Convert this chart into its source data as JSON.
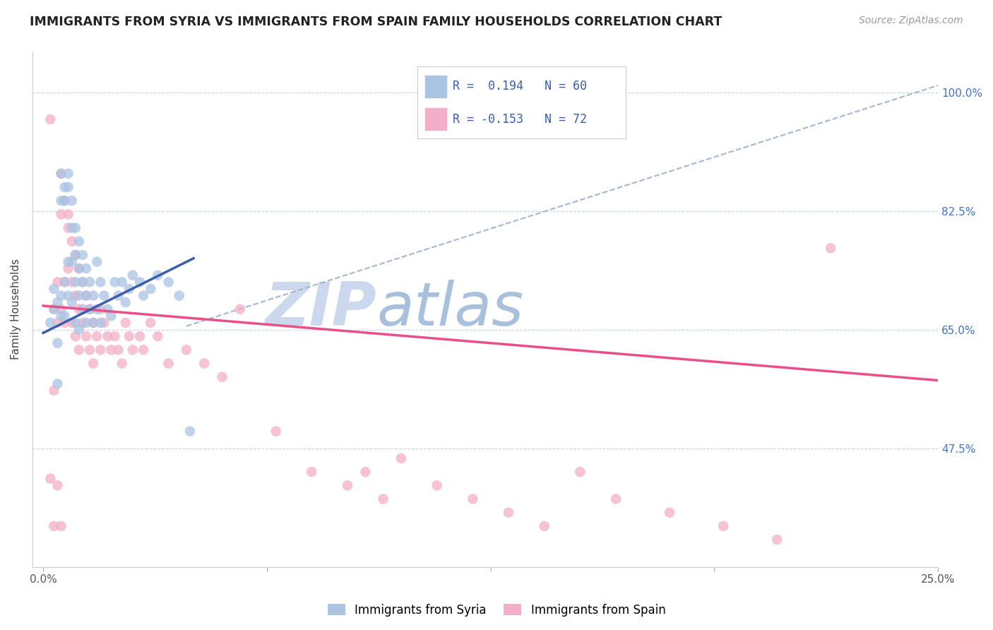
{
  "title": "IMMIGRANTS FROM SYRIA VS IMMIGRANTS FROM SPAIN FAMILY HOUSEHOLDS CORRELATION CHART",
  "source": "Source: ZipAtlas.com",
  "ylabel": "Family Households",
  "legend_r_syria": "0.194",
  "legend_n_syria": "60",
  "legend_r_spain": "-0.153",
  "legend_n_spain": "72",
  "color_syria": "#aac4e2",
  "color_spain": "#f4afc8",
  "trendline_syria_color": "#3a5faa",
  "trendline_spain_color": "#e8508a",
  "trendline_dashed_color": "#9ab0cc",
  "watermark_zip_color": "#c8d8ee",
  "watermark_atlas_color": "#9ab8d8",
  "xlim": [
    0.0,
    0.25
  ],
  "ylim": [
    0.3,
    1.06
  ],
  "ytick_vals": [
    0.475,
    0.65,
    0.825,
    1.0
  ],
  "ytick_labels": [
    "47.5%",
    "65.0%",
    "82.5%",
    "100.0%"
  ],
  "xtick_vals": [
    0.0,
    0.25
  ],
  "xtick_labels": [
    "0.0%",
    "25.0%"
  ],
  "syria_trendline_x0": 0.0,
  "syria_trendline_y0": 0.645,
  "syria_trendline_x1": 0.042,
  "syria_trendline_y1": 0.755,
  "spain_trendline_x0": 0.0,
  "spain_trendline_y0": 0.685,
  "spain_trendline_x1": 0.25,
  "spain_trendline_y1": 0.575,
  "dash_trendline_x0": 0.04,
  "dash_trendline_y0": 0.655,
  "dash_trendline_x1": 0.25,
  "dash_trendline_y1": 1.01,
  "syria_scatter_x": [
    0.002,
    0.003,
    0.003,
    0.004,
    0.004,
    0.004,
    0.005,
    0.005,
    0.005,
    0.005,
    0.006,
    0.006,
    0.006,
    0.006,
    0.007,
    0.007,
    0.007,
    0.007,
    0.008,
    0.008,
    0.008,
    0.008,
    0.009,
    0.009,
    0.009,
    0.009,
    0.01,
    0.01,
    0.01,
    0.01,
    0.011,
    0.011,
    0.011,
    0.012,
    0.012,
    0.012,
    0.013,
    0.013,
    0.014,
    0.014,
    0.015,
    0.015,
    0.016,
    0.016,
    0.017,
    0.018,
    0.019,
    0.02,
    0.021,
    0.022,
    0.023,
    0.024,
    0.025,
    0.027,
    0.028,
    0.03,
    0.032,
    0.035,
    0.038,
    0.041
  ],
  "syria_scatter_y": [
    0.66,
    0.68,
    0.71,
    0.69,
    0.63,
    0.57,
    0.88,
    0.84,
    0.7,
    0.67,
    0.86,
    0.84,
    0.72,
    0.67,
    0.88,
    0.86,
    0.75,
    0.7,
    0.84,
    0.8,
    0.75,
    0.69,
    0.8,
    0.76,
    0.72,
    0.66,
    0.78,
    0.74,
    0.7,
    0.65,
    0.76,
    0.72,
    0.68,
    0.74,
    0.7,
    0.66,
    0.72,
    0.68,
    0.7,
    0.66,
    0.75,
    0.68,
    0.72,
    0.66,
    0.7,
    0.68,
    0.67,
    0.72,
    0.7,
    0.72,
    0.69,
    0.71,
    0.73,
    0.72,
    0.7,
    0.71,
    0.73,
    0.72,
    0.7,
    0.5
  ],
  "spain_scatter_x": [
    0.002,
    0.002,
    0.003,
    0.003,
    0.003,
    0.004,
    0.004,
    0.004,
    0.005,
    0.005,
    0.005,
    0.005,
    0.006,
    0.006,
    0.006,
    0.007,
    0.007,
    0.007,
    0.008,
    0.008,
    0.008,
    0.009,
    0.009,
    0.009,
    0.01,
    0.01,
    0.01,
    0.011,
    0.011,
    0.012,
    0.012,
    0.013,
    0.013,
    0.014,
    0.014,
    0.015,
    0.016,
    0.016,
    0.017,
    0.018,
    0.019,
    0.02,
    0.021,
    0.022,
    0.023,
    0.024,
    0.025,
    0.027,
    0.028,
    0.03,
    0.032,
    0.035,
    0.04,
    0.045,
    0.05,
    0.055,
    0.065,
    0.075,
    0.085,
    0.09,
    0.095,
    0.1,
    0.11,
    0.12,
    0.13,
    0.14,
    0.15,
    0.16,
    0.175,
    0.19,
    0.205,
    0.22
  ],
  "spain_scatter_y": [
    0.96,
    0.43,
    0.68,
    0.56,
    0.36,
    0.72,
    0.66,
    0.42,
    0.88,
    0.82,
    0.68,
    0.36,
    0.84,
    0.72,
    0.66,
    0.8,
    0.74,
    0.82,
    0.78,
    0.72,
    0.66,
    0.76,
    0.7,
    0.64,
    0.74,
    0.68,
    0.62,
    0.72,
    0.66,
    0.7,
    0.64,
    0.68,
    0.62,
    0.66,
    0.6,
    0.64,
    0.68,
    0.62,
    0.66,
    0.64,
    0.62,
    0.64,
    0.62,
    0.6,
    0.66,
    0.64,
    0.62,
    0.64,
    0.62,
    0.66,
    0.64,
    0.6,
    0.62,
    0.6,
    0.58,
    0.68,
    0.5,
    0.44,
    0.42,
    0.44,
    0.4,
    0.46,
    0.42,
    0.4,
    0.38,
    0.36,
    0.44,
    0.4,
    0.38,
    0.36,
    0.34,
    0.77
  ]
}
